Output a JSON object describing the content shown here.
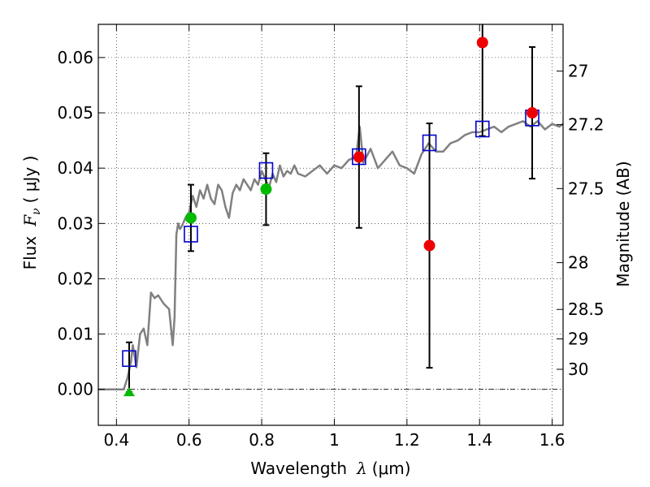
{
  "chart_data": {
    "type": "scatter",
    "title": "",
    "xlabel": "Wavelength",
    "xlabel_symbol": "λ",
    "xlabel_unit": "(μm)",
    "ylabel": "Flux",
    "ylabel_symbol": "F",
    "ylabel_symbol_sub": "ν",
    "ylabel_unit": "( μJy )",
    "y2label": "Magnitude (AB)",
    "xlim": [
      0.35,
      1.63
    ],
    "ylim": [
      -0.0065,
      0.066
    ],
    "grid": true,
    "xticks": [
      {
        "value": 0.4,
        "label": "0.4"
      },
      {
        "value": 0.6,
        "label": "0.6"
      },
      {
        "value": 0.8,
        "label": "0.8"
      },
      {
        "value": 1.0,
        "label": "1"
      },
      {
        "value": 1.2,
        "label": "1.2"
      },
      {
        "value": 1.4,
        "label": "1.4"
      },
      {
        "value": 1.6,
        "label": "1.6"
      }
    ],
    "yticks": [
      {
        "value": 0.0,
        "label": "0.00"
      },
      {
        "value": 0.01,
        "label": "0.01"
      },
      {
        "value": 0.02,
        "label": "0.02"
      },
      {
        "value": 0.03,
        "label": "0.03"
      },
      {
        "value": 0.04,
        "label": "0.04"
      },
      {
        "value": 0.05,
        "label": "0.05"
      },
      {
        "value": 0.06,
        "label": "0.06"
      }
    ],
    "y2ticks": [
      {
        "value": 27.0,
        "label": "27"
      },
      {
        "value": 27.2,
        "label": "27.2"
      },
      {
        "value": 27.5,
        "label": "27.5"
      },
      {
        "value": 28.0,
        "label": "28"
      },
      {
        "value": 28.5,
        "label": "28.5"
      },
      {
        "value": 29.0,
        "label": "29"
      },
      {
        "value": 30.0,
        "label": "30"
      }
    ],
    "colors": {
      "template": "#808080",
      "model": "#0000cc",
      "green": "#00bb00",
      "red": "#ee0000",
      "errorbar": "#000000"
    },
    "template_spectrum": {
      "x": [
        0.35,
        0.41,
        0.42,
        0.43,
        0.44,
        0.445,
        0.455,
        0.465,
        0.475,
        0.485,
        0.495,
        0.505,
        0.515,
        0.53,
        0.545,
        0.555,
        0.56,
        0.565,
        0.57,
        0.575,
        0.58,
        0.59,
        0.6,
        0.61,
        0.62,
        0.63,
        0.64,
        0.65,
        0.66,
        0.67,
        0.68,
        0.69,
        0.7,
        0.71,
        0.72,
        0.73,
        0.74,
        0.75,
        0.76,
        0.77,
        0.78,
        0.79,
        0.8,
        0.81,
        0.82,
        0.83,
        0.84,
        0.85,
        0.86,
        0.87,
        0.88,
        0.89,
        0.9,
        0.92,
        0.94,
        0.96,
        0.98,
        1.0,
        1.02,
        1.04,
        1.06,
        1.07,
        1.08,
        1.1,
        1.12,
        1.14,
        1.16,
        1.18,
        1.2,
        1.22,
        1.24,
        1.26,
        1.28,
        1.3,
        1.32,
        1.34,
        1.36,
        1.38,
        1.4,
        1.42,
        1.44,
        1.46,
        1.48,
        1.5,
        1.52,
        1.54,
        1.56,
        1.58,
        1.6,
        1.62,
        1.63
      ],
      "y": [
        0.0,
        0.0,
        0.0,
        0.002,
        0.005,
        0.008,
        0.004,
        0.01,
        0.011,
        0.008,
        0.0175,
        0.0165,
        0.017,
        0.0155,
        0.0145,
        0.008,
        0.013,
        0.028,
        0.03,
        0.029,
        0.0295,
        0.031,
        0.032,
        0.035,
        0.033,
        0.036,
        0.0345,
        0.037,
        0.0345,
        0.0335,
        0.037,
        0.036,
        0.033,
        0.031,
        0.0355,
        0.037,
        0.036,
        0.038,
        0.037,
        0.036,
        0.038,
        0.037,
        0.0395,
        0.038,
        0.0365,
        0.039,
        0.0375,
        0.0405,
        0.0385,
        0.0395,
        0.039,
        0.0405,
        0.039,
        0.0385,
        0.0395,
        0.0405,
        0.039,
        0.0405,
        0.04,
        0.0415,
        0.042,
        0.0475,
        0.041,
        0.0435,
        0.04,
        0.0415,
        0.043,
        0.0405,
        0.04,
        0.039,
        0.0425,
        0.0445,
        0.043,
        0.043,
        0.0445,
        0.045,
        0.046,
        0.0465,
        0.0465,
        0.047,
        0.0475,
        0.0465,
        0.0475,
        0.048,
        0.0485,
        0.0475,
        0.0485,
        0.047,
        0.048,
        0.0475,
        0.048
      ]
    },
    "model_points": {
      "x": [
        0.435,
        0.605,
        0.812,
        1.068,
        1.262,
        1.408,
        1.545
      ],
      "y": [
        0.0055,
        0.028,
        0.0395,
        0.042,
        0.0445,
        0.047,
        0.049
      ]
    },
    "green_points": {
      "x": [
        0.605,
        0.812
      ],
      "y": [
        0.031,
        0.0362
      ],
      "err": [
        0.006,
        0.0065
      ]
    },
    "green_triangle": {
      "x": 0.435,
      "y": -0.0005,
      "err_high": 0.009
    },
    "red_points": {
      "x": [
        1.068,
        1.262,
        1.408,
        1.545
      ],
      "y": [
        0.042,
        0.026,
        0.0627,
        0.05
      ],
      "err": [
        0.0128,
        0.0221,
        0.0169,
        0.0119
      ]
    }
  }
}
